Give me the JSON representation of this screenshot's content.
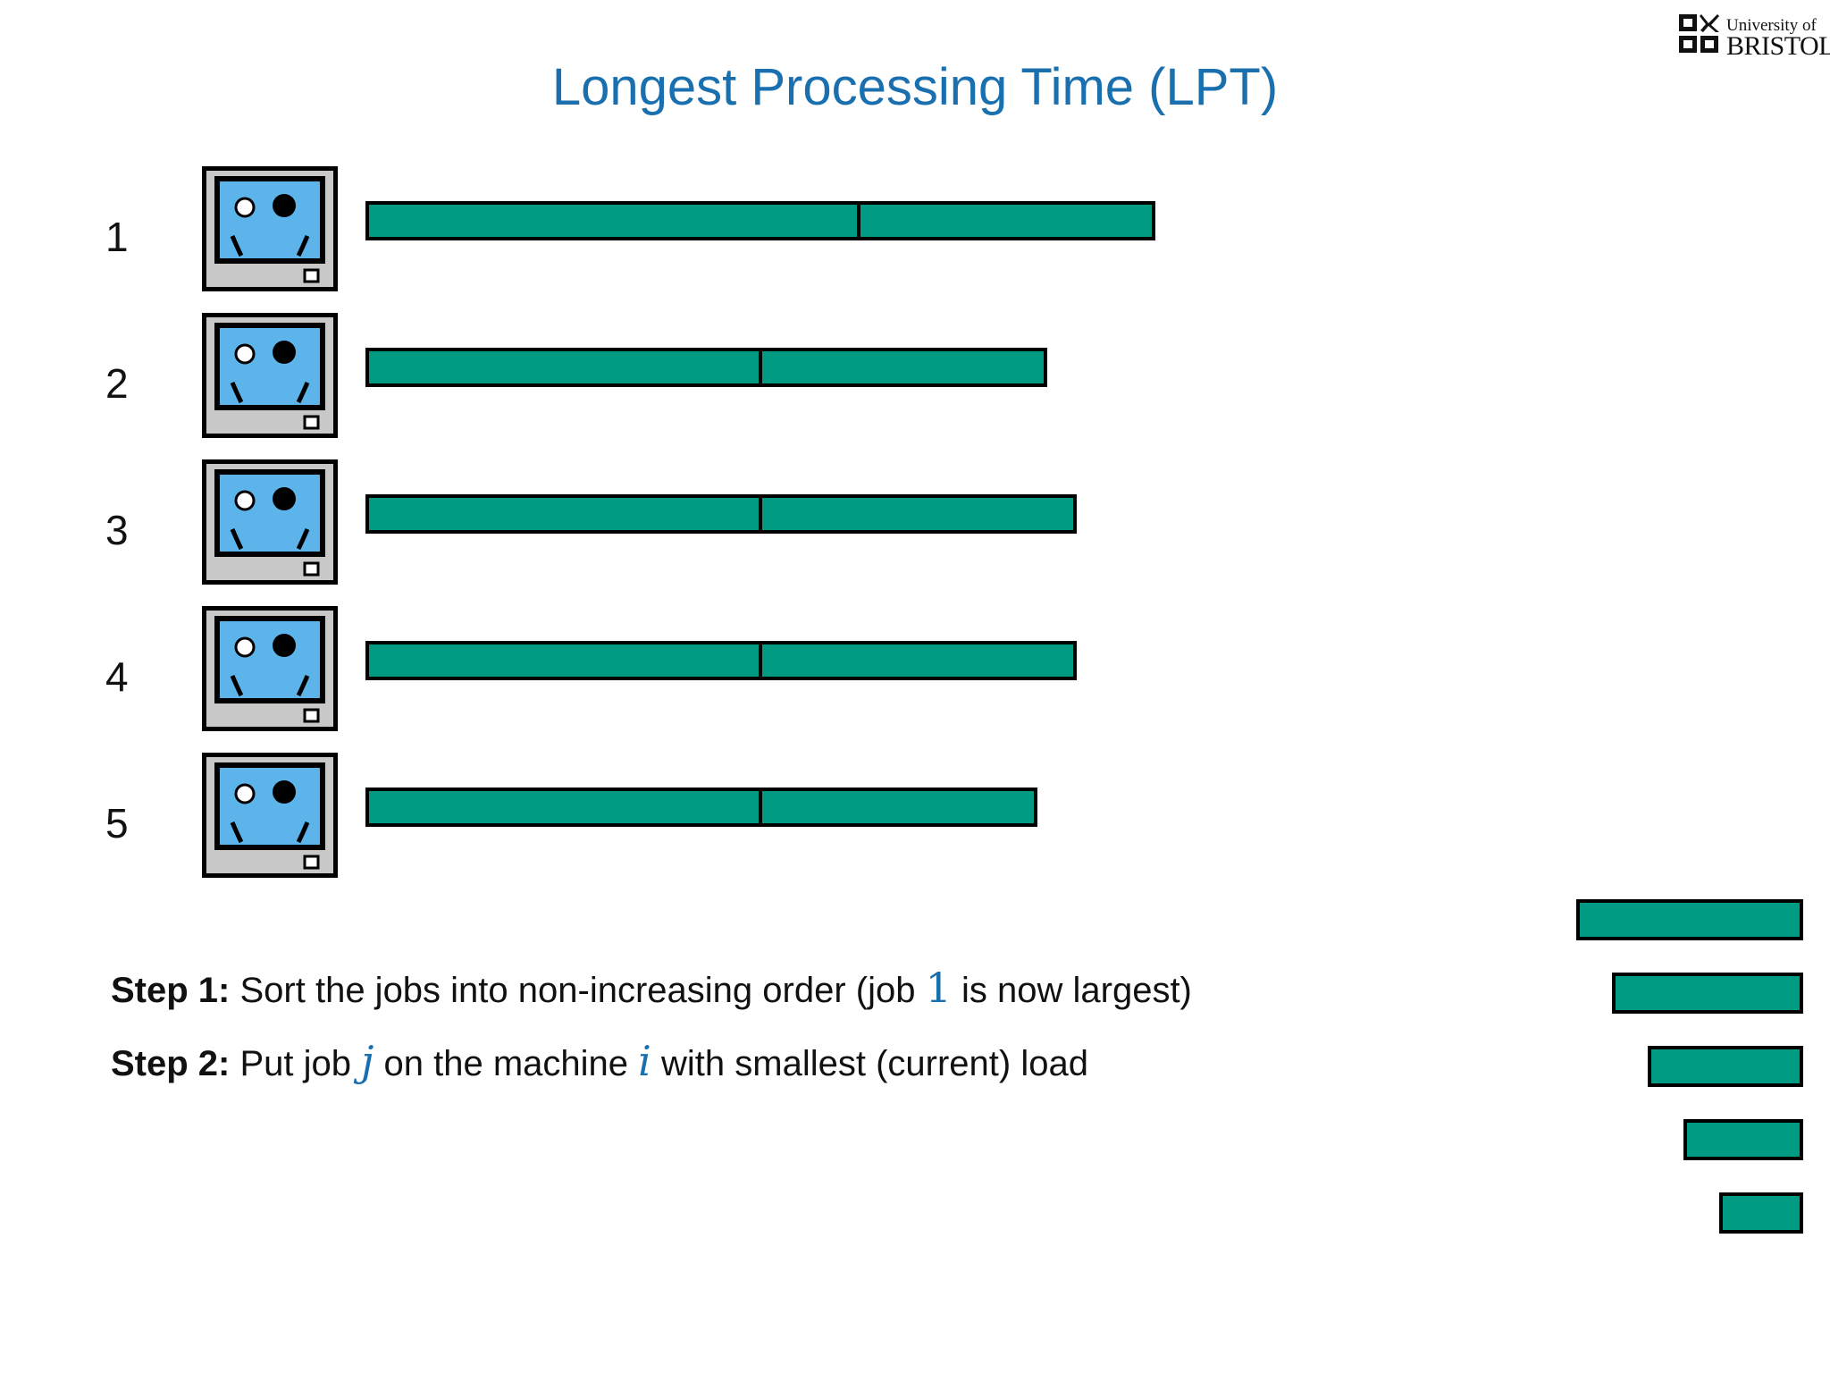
{
  "header": {
    "title": "Longest Processing Time (LPT)",
    "logo_line1": "University of",
    "logo_line2": "BRISTOL"
  },
  "colors": {
    "job": "#019a82",
    "screen": "#5cb4ea",
    "title": "#1a6fae",
    "monitor_body": "#c8c8c8"
  },
  "machines": [
    {
      "label": "1",
      "jobs": [
        5,
        3
      ]
    },
    {
      "label": "2",
      "jobs": [
        4,
        2.9
      ]
    },
    {
      "label": "3",
      "jobs": [
        4,
        3.2
      ]
    },
    {
      "label": "4",
      "jobs": [
        4,
        3.2
      ]
    },
    {
      "label": "5",
      "jobs": [
        4,
        2.8
      ]
    }
  ],
  "remaining_jobs": [
    2.5,
    2.1,
    1.7,
    1.3,
    0.9
  ],
  "steps": {
    "s1_label": "Step 1:",
    "s1_text_a": "Sort the jobs into non-increasing order (job",
    "s1_math": "1",
    "s1_text_b": "is now largest)",
    "s2_label": "Step 2:",
    "s2_text_a": "Put job",
    "s2_math_j": "j",
    "s2_text_b": "on the machine",
    "s2_math_i": "i",
    "s2_text_c": "with smallest (current) load"
  }
}
